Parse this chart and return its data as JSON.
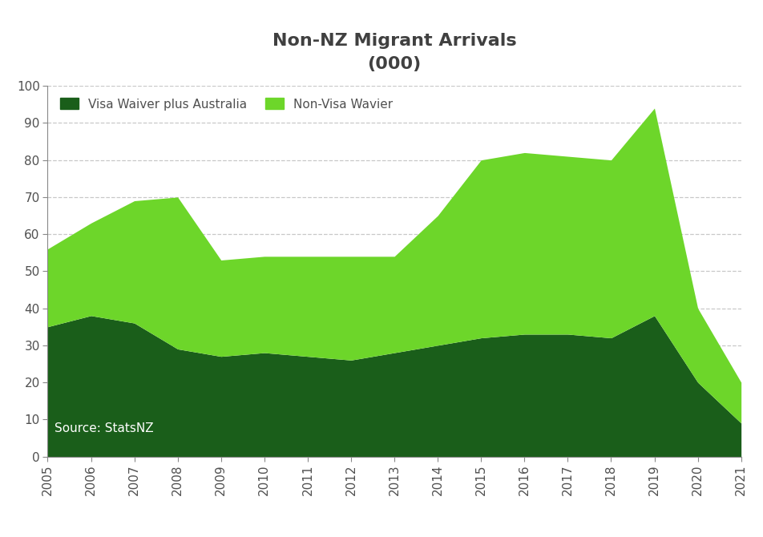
{
  "title_line1": "Non-NZ Migrant Arrivals",
  "title_line2": "(000)",
  "years": [
    2005,
    2006,
    2007,
    2008,
    2009,
    2010,
    2011,
    2012,
    2013,
    2014,
    2015,
    2016,
    2017,
    2018,
    2019,
    2020,
    2021
  ],
  "visa_waiver": [
    35,
    38,
    36,
    29,
    27,
    28,
    27,
    26,
    28,
    30,
    32,
    33,
    33,
    32,
    38,
    20,
    9
  ],
  "non_visa_waiver": [
    21,
    25,
    33,
    41,
    26,
    26,
    27,
    28,
    26,
    35,
    48,
    49,
    48,
    48,
    56,
    20,
    11
  ],
  "color_visa_waiver": "#1a5e1a",
  "color_non_visa_waiver": "#6dd62a",
  "legend_label_1": "Visa Waiver plus Australia",
  "legend_label_2": "Non-Visa Wavier",
  "ylim": [
    0,
    100
  ],
  "yticks": [
    0,
    10,
    20,
    30,
    40,
    50,
    60,
    70,
    80,
    90,
    100
  ],
  "background_color": "#ffffff",
  "grid_color": "#c8c8c8",
  "title_color": "#404040",
  "axis_label_color": "#505050"
}
